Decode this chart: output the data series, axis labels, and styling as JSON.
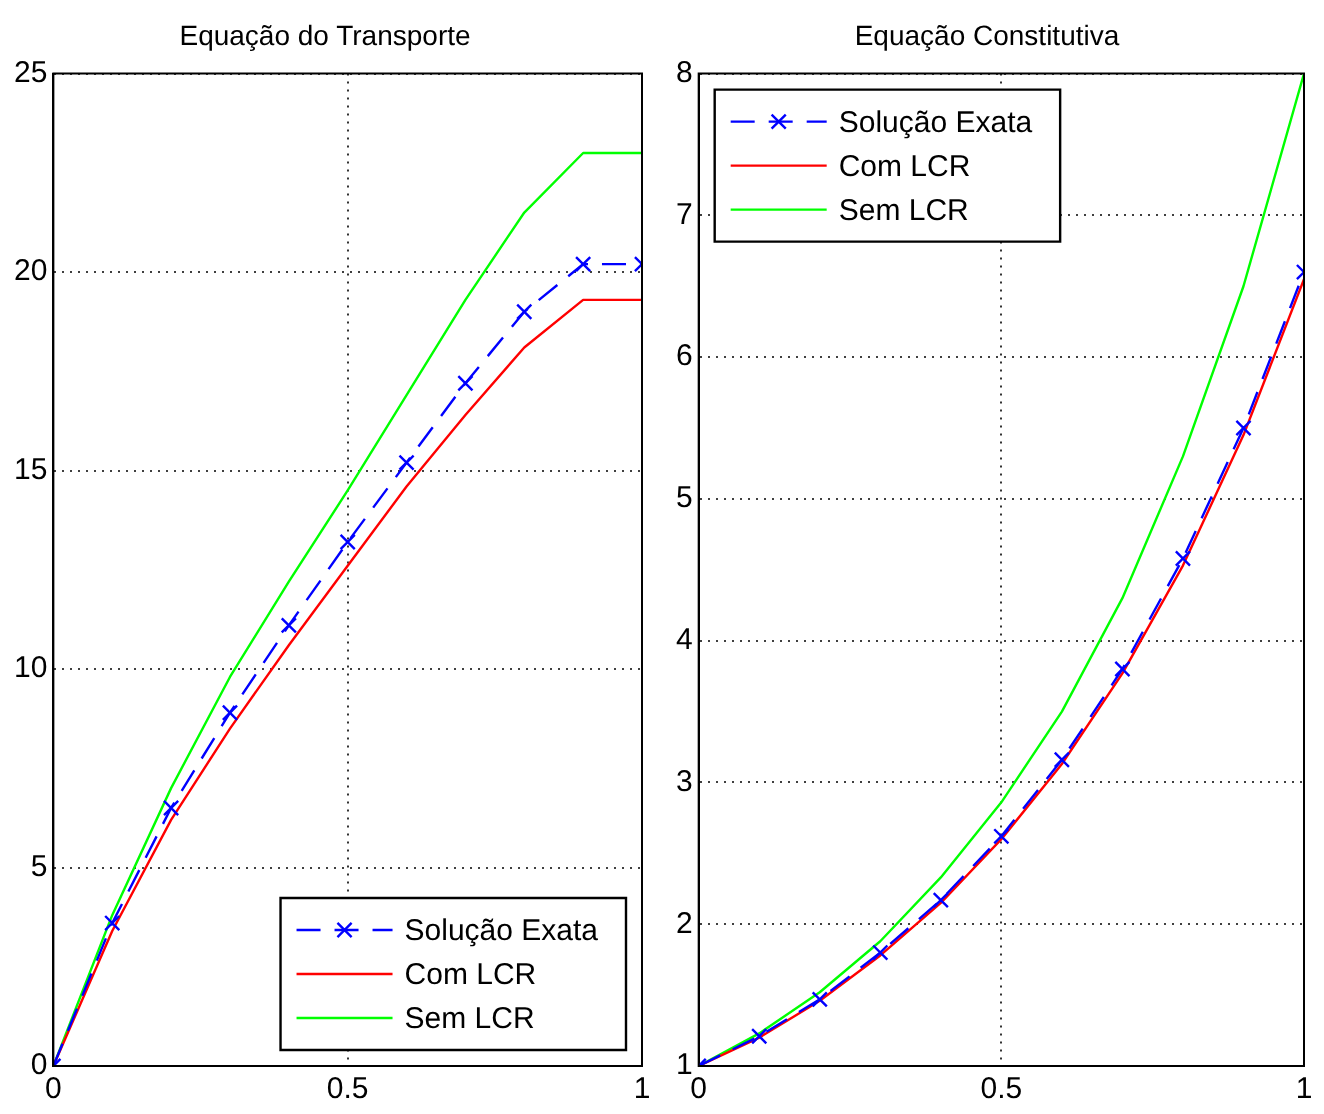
{
  "chart_data": [
    {
      "type": "line",
      "title": "Equação do Transporte",
      "x": [
        0,
        0.1,
        0.2,
        0.3,
        0.4,
        0.5,
        0.6,
        0.7,
        0.8,
        0.9,
        1
      ],
      "series": [
        {
          "name": "Solução Exata",
          "color": "#0000ff",
          "line_style": "dashed",
          "marker": "cross",
          "values": [
            0,
            3.6,
            6.5,
            8.9,
            11.1,
            13.2,
            15.2,
            17.2,
            19.0,
            20.2,
            20.2
          ]
        },
        {
          "name": "Com LCR",
          "color": "#ff0000",
          "line_style": "solid",
          "marker": "none",
          "values": [
            0,
            3.4,
            6.2,
            8.5,
            10.6,
            12.6,
            14.6,
            16.4,
            18.1,
            19.3,
            19.3
          ]
        },
        {
          "name": "Sem LCR",
          "color": "#00ff00",
          "line_style": "solid",
          "marker": "none",
          "values": [
            0,
            3.8,
            7.0,
            9.8,
            12.2,
            14.5,
            16.9,
            19.3,
            21.5,
            23.0,
            23.0
          ]
        }
      ],
      "xlim": [
        0,
        1
      ],
      "xticks": [
        0,
        0.5,
        1
      ],
      "ylim": [
        0,
        25
      ],
      "yticks": [
        0,
        5,
        10,
        15,
        20,
        25
      ],
      "grid": true,
      "legend": "bottom right"
    },
    {
      "type": "line",
      "title": "Equação Constitutiva",
      "x": [
        0,
        0.1,
        0.2,
        0.3,
        0.4,
        0.5,
        0.6,
        0.7,
        0.8,
        0.9,
        1
      ],
      "series": [
        {
          "name": "Solução Exata",
          "color": "#0000ff",
          "line_style": "dashed",
          "marker": "cross",
          "values": [
            1,
            1.21,
            1.47,
            1.8,
            2.17,
            2.62,
            3.16,
            3.8,
            4.58,
            5.5,
            6.6
          ]
        },
        {
          "name": "Com LCR",
          "color": "#ff0000",
          "line_style": "solid",
          "marker": "none",
          "values": [
            1,
            1.2,
            1.46,
            1.78,
            2.15,
            2.6,
            3.13,
            3.77,
            4.53,
            5.45,
            6.55
          ]
        },
        {
          "name": "Sem LCR",
          "color": "#00ff00",
          "line_style": "solid",
          "marker": "none",
          "values": [
            1,
            1.23,
            1.52,
            1.88,
            2.33,
            2.86,
            3.5,
            4.3,
            5.3,
            6.5,
            8.0
          ]
        }
      ],
      "xlim": [
        0,
        1
      ],
      "xticks": [
        0,
        0.5,
        1
      ],
      "ylim": [
        1,
        8
      ],
      "yticks": [
        1,
        2,
        3,
        4,
        5,
        6,
        7,
        8
      ],
      "grid": true,
      "legend": "top left"
    }
  ]
}
